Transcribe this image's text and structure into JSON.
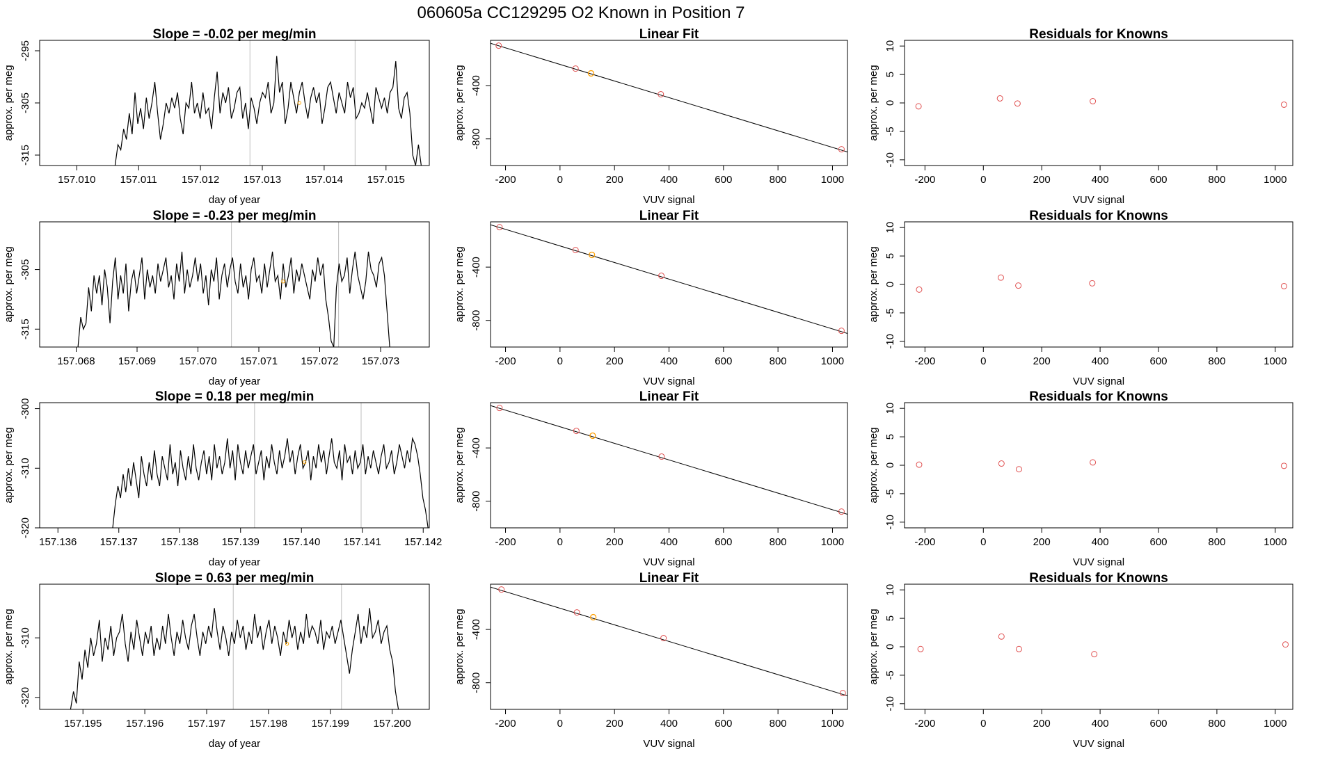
{
  "figure_title": "060605a      CC129295   O2 Known in Position  7",
  "chart_data": [
    {
      "type": "line",
      "title": "Slope =  -0.02  per meg/min",
      "xlabel": "day of year",
      "ylabel": "approx. per meg",
      "xlim": [
        157.0094,
        157.0157
      ],
      "ylim": [
        -317,
        -293
      ],
      "xticks": [
        "157.010",
        "157.011",
        "157.012",
        "157.013",
        "157.014",
        "157.015"
      ],
      "yticks": [
        "-295",
        "-305",
        "-315"
      ],
      "vlines": [
        157.0128,
        157.0145
      ],
      "marker_point": {
        "x": 157.0136,
        "y": -305
      },
      "start": 157.01062,
      "end": 157.01557,
      "values": [
        -317,
        -313,
        -314,
        -310,
        -312,
        -307,
        -311,
        -303,
        -309,
        -306,
        -310,
        -304,
        -308,
        -305,
        -301,
        -307,
        -312,
        -309,
        -305,
        -307,
        -304,
        -306,
        -303,
        -308,
        -311,
        -305,
        -306,
        -301,
        -307,
        -305,
        -308,
        -303,
        -307,
        -306,
        -310,
        -304,
        -299,
        -307,
        -303,
        -305,
        -302,
        -308,
        -306,
        -303,
        -302,
        -308,
        -305,
        -310,
        -304,
        -306,
        -309,
        -305,
        -303,
        -304,
        -301,
        -307,
        -305,
        -296,
        -303,
        -301,
        -309,
        -306,
        -301,
        -304,
        -307,
        -303,
        -301,
        -305,
        -308,
        -304,
        -302,
        -305,
        -303,
        -309,
        -306,
        -302,
        -301,
        -304,
        -307,
        -303,
        -305,
        -307,
        -301,
        -304,
        -302,
        -308,
        -307,
        -305,
        -306,
        -303,
        -306,
        -309,
        -302,
        -304,
        -306,
        -304,
        -307,
        -303,
        -302,
        -297,
        -306,
        -308,
        -304,
        -303,
        -307,
        -315,
        -317,
        -313,
        -317
      ]
    },
    {
      "type": "scatter",
      "title": "Linear Fit",
      "xlabel": "VUV signal",
      "ylabel": "approx. per meg",
      "xlim": [
        -255,
        1055
      ],
      "ylim": [
        -1000,
        -60
      ],
      "xticks": [
        "-200",
        "0",
        "200",
        "400",
        "600",
        "800",
        "1000"
      ],
      "yticks": [
        "-400",
        "-800"
      ],
      "points": [
        {
          "x": -225,
          "y": -100
        },
        {
          "x": 57,
          "y": -272
        },
        {
          "x": 114,
          "y": -308
        },
        {
          "x": 370,
          "y": -465
        },
        {
          "x": 1033,
          "y": -878
        }
      ],
      "highlight": [
        {
          "x": 114,
          "y": -308
        }
      ],
      "fit_line": {
        "x0": -255,
        "y0": -82,
        "x1": 1055,
        "y1": -898
      }
    },
    {
      "type": "scatter",
      "title": "Residuals for Knowns",
      "xlabel": "VUV signal",
      "ylabel": "approx. per meg",
      "xlim": [
        -270,
        1060
      ],
      "ylim": [
        -11,
        11
      ],
      "xticks": [
        "-200",
        "0",
        "200",
        "400",
        "600",
        "800",
        "1000"
      ],
      "yticks": [
        "10",
        "5",
        "0",
        "-5",
        "-10"
      ],
      "points": [
        {
          "x": -222,
          "y": -0.6
        },
        {
          "x": 57,
          "y": 0.8
        },
        {
          "x": 117,
          "y": -0.1
        },
        {
          "x": 375,
          "y": 0.3
        },
        {
          "x": 1030,
          "y": -0.3
        }
      ]
    },
    {
      "type": "line",
      "title": "Slope =  -0.23  per meg/min",
      "xlabel": "day of year",
      "ylabel": "approx. per meg",
      "xlim": [
        157.0674,
        157.0738
      ],
      "ylim": [
        -318,
        -297
      ],
      "xticks": [
        "157.068",
        "157.069",
        "157.070",
        "157.071",
        "157.072",
        "157.073"
      ],
      "yticks": [
        "-305",
        "-315"
      ],
      "vlines": [
        157.07055,
        157.07231
      ],
      "marker_point": {
        "x": 157.0714,
        "y": -307
      },
      "start": 157.06803,
      "end": 157.07315,
      "values": [
        -318,
        -313,
        -315,
        -314,
        -308,
        -312,
        -306,
        -309,
        -306,
        -311,
        -305,
        -308,
        -314,
        -307,
        -303,
        -310,
        -306,
        -309,
        -304,
        -312,
        -307,
        -305,
        -309,
        -306,
        -303,
        -310,
        -305,
        -308,
        -306,
        -309,
        -304,
        -307,
        -305,
        -303,
        -308,
        -306,
        -310,
        -304,
        -307,
        -302,
        -309,
        -305,
        -308,
        -306,
        -303,
        -307,
        -304,
        -309,
        -306,
        -311,
        -305,
        -307,
        -303,
        -310,
        -306,
        -304,
        -308,
        -305,
        -303,
        -307,
        -309,
        -304,
        -308,
        -306,
        -310,
        -305,
        -303,
        -307,
        -306,
        -309,
        -304,
        -308,
        -305,
        -302,
        -307,
        -306,
        -310,
        -304,
        -308,
        -306,
        -303,
        -309,
        -305,
        -307,
        -304,
        -306,
        -308,
        -310,
        -305,
        -307,
        -303,
        -306,
        -304,
        -310,
        -313,
        -317,
        -318,
        -308,
        -304,
        -307,
        -306,
        -303,
        -309,
        -305,
        -302,
        -306,
        -308,
        -310,
        -307,
        -302,
        -305,
        -306,
        -308,
        -304,
        -303,
        -306,
        -312,
        -318
      ]
    },
    {
      "type": "scatter",
      "title": "Linear Fit",
      "xlabel": "VUV signal",
      "ylabel": "approx. per meg",
      "xlim": [
        -255,
        1055
      ],
      "ylim": [
        -1000,
        -60
      ],
      "xticks": [
        "-200",
        "0",
        "200",
        "400",
        "600",
        "800",
        "1000"
      ],
      "yticks": [
        "-400",
        "-800"
      ],
      "points": [
        {
          "x": -222,
          "y": -100
        },
        {
          "x": 57,
          "y": -272
        },
        {
          "x": 117,
          "y": -308
        },
        {
          "x": 372,
          "y": -465
        },
        {
          "x": 1033,
          "y": -878
        }
      ],
      "highlight": [
        {
          "x": 117,
          "y": -308
        }
      ],
      "fit_line": {
        "x0": -255,
        "y0": -82,
        "x1": 1055,
        "y1": -898
      }
    },
    {
      "type": "scatter",
      "title": "Residuals for Knowns",
      "xlabel": "VUV signal",
      "ylabel": "approx. per meg",
      "xlim": [
        -270,
        1060
      ],
      "ylim": [
        -11,
        11
      ],
      "xticks": [
        "-200",
        "0",
        "200",
        "400",
        "600",
        "800",
        "1000"
      ],
      "yticks": [
        "10",
        "5",
        "0",
        "-5",
        "-10"
      ],
      "points": [
        {
          "x": -220,
          "y": -0.9
        },
        {
          "x": 60,
          "y": 1.2
        },
        {
          "x": 120,
          "y": -0.2
        },
        {
          "x": 373,
          "y": 0.2
        },
        {
          "x": 1030,
          "y": -0.3
        }
      ]
    },
    {
      "type": "line",
      "title": "Slope =  0.18  per meg/min",
      "xlabel": "day of year",
      "ylabel": "approx. per meg",
      "xlim": [
        157.1357,
        157.1421
      ],
      "ylim": [
        -320,
        -299
      ],
      "xticks": [
        "157.136",
        "157.137",
        "157.138",
        "157.139",
        "157.140",
        "157.141",
        "157.142"
      ],
      "yticks": [
        "-300",
        "-310",
        "-320"
      ],
      "vlines": [
        157.13923,
        157.14098
      ],
      "marker_point": {
        "x": 157.14005,
        "y": -309
      },
      "start": 157.1369,
      "end": 157.14208,
      "values": [
        -320,
        -316,
        -313,
        -315,
        -311,
        -314,
        -310,
        -313,
        -309,
        -312,
        -315,
        -308,
        -311,
        -313,
        -309,
        -312,
        -307,
        -311,
        -313,
        -308,
        -310,
        -312,
        -306,
        -311,
        -309,
        -313,
        -307,
        -310,
        -312,
        -308,
        -311,
        -306,
        -310,
        -312,
        -309,
        -307,
        -311,
        -308,
        -312,
        -306,
        -310,
        -308,
        -311,
        -309,
        -305,
        -310,
        -307,
        -312,
        -306,
        -309,
        -311,
        -307,
        -310,
        -308,
        -306,
        -311,
        -309,
        -307,
        -312,
        -308,
        -310,
        -306,
        -309,
        -311,
        -307,
        -310,
        -308,
        -305,
        -309,
        -307,
        -311,
        -308,
        -306,
        -310,
        -309,
        -307,
        -312,
        -308,
        -310,
        -306,
        -309,
        -307,
        -311,
        -308,
        -305,
        -309,
        -310,
        -307,
        -312,
        -306,
        -309,
        -308,
        -311,
        -307,
        -310,
        -309,
        -306,
        -311,
        -308,
        -310,
        -307,
        -309,
        -311,
        -308,
        -306,
        -310,
        -309,
        -307,
        -311,
        -309,
        -306,
        -308,
        -310,
        -307,
        -309,
        -305,
        -306,
        -308,
        -311,
        -315,
        -317,
        -320
      ]
    },
    {
      "type": "scatter",
      "title": "Linear Fit",
      "xlabel": "VUV signal",
      "ylabel": "approx. per meg",
      "xlim": [
        -255,
        1055
      ],
      "ylim": [
        -1000,
        -60
      ],
      "xticks": [
        "-200",
        "0",
        "200",
        "400",
        "600",
        "800",
        "1000"
      ],
      "yticks": [
        "-400",
        "-800"
      ],
      "points": [
        {
          "x": -222,
          "y": -100
        },
        {
          "x": 60,
          "y": -272
        },
        {
          "x": 120,
          "y": -308
        },
        {
          "x": 373,
          "y": -465
        },
        {
          "x": 1033,
          "y": -878
        }
      ],
      "highlight": [
        {
          "x": 120,
          "y": -308
        }
      ],
      "fit_line": {
        "x0": -255,
        "y0": -82,
        "x1": 1055,
        "y1": -898
      }
    },
    {
      "type": "scatter",
      "title": "Residuals for Knowns",
      "xlabel": "VUV signal",
      "ylabel": "approx. per meg",
      "xlim": [
        -270,
        1060
      ],
      "ylim": [
        -11,
        11
      ],
      "xticks": [
        "-200",
        "0",
        "200",
        "400",
        "600",
        "800",
        "1000"
      ],
      "yticks": [
        "10",
        "5",
        "0",
        "-5",
        "-10"
      ],
      "points": [
        {
          "x": -220,
          "y": 0.1
        },
        {
          "x": 62,
          "y": 0.3
        },
        {
          "x": 122,
          "y": -0.7
        },
        {
          "x": 375,
          "y": 0.5
        },
        {
          "x": 1030,
          "y": -0.1
        }
      ]
    },
    {
      "type": "line",
      "title": "Slope =  0.63  per meg/min",
      "xlabel": "day of year",
      "ylabel": "approx. per meg",
      "xlim": [
        157.1943,
        157.2006
      ],
      "ylim": [
        -322,
        -301
      ],
      "xticks": [
        "157.195",
        "157.196",
        "157.197",
        "157.198",
        "157.199",
        "157.200"
      ],
      "yticks": [
        "-310",
        "-320"
      ],
      "vlines": [
        157.19743,
        157.19918
      ],
      "marker_point": {
        "x": 157.1983,
        "y": -311
      },
      "start": 157.1948,
      "end": 157.2001,
      "values": [
        -322,
        -319,
        -321,
        -314,
        -317,
        -312,
        -315,
        -310,
        -313,
        -311,
        -307,
        -314,
        -310,
        -312,
        -308,
        -313,
        -310,
        -309,
        -306,
        -311,
        -314,
        -309,
        -312,
        -307,
        -310,
        -313,
        -309,
        -311,
        -308,
        -313,
        -310,
        -312,
        -308,
        -311,
        -306,
        -310,
        -313,
        -309,
        -311,
        -307,
        -310,
        -312,
        -308,
        -306,
        -310,
        -313,
        -309,
        -311,
        -308,
        -310,
        -305,
        -309,
        -312,
        -308,
        -310,
        -313,
        -309,
        -311,
        -307,
        -310,
        -308,
        -312,
        -309,
        -311,
        -306,
        -310,
        -308,
        -312,
        -309,
        -307,
        -311,
        -308,
        -310,
        -313,
        -309,
        -311,
        -307,
        -310,
        -308,
        -312,
        -309,
        -311,
        -306,
        -310,
        -308,
        -309,
        -311,
        -307,
        -312,
        -309,
        -310,
        -308,
        -311,
        -309,
        -307,
        -310,
        -313,
        -316,
        -312,
        -309,
        -306,
        -311,
        -308,
        -310,
        -305,
        -310,
        -309,
        -307,
        -311,
        -309,
        -308,
        -312,
        -314,
        -319,
        -322
      ]
    },
    {
      "type": "scatter",
      "title": "Linear Fit",
      "xlabel": "VUV signal",
      "ylabel": "approx. per meg",
      "xlim": [
        -255,
        1055
      ],
      "ylim": [
        -1000,
        -60
      ],
      "xticks": [
        "-200",
        "0",
        "200",
        "400",
        "600",
        "800",
        "1000"
      ],
      "yticks": [
        "-400",
        "-800"
      ],
      "points": [
        {
          "x": -215,
          "y": -100
        },
        {
          "x": 62,
          "y": -272
        },
        {
          "x": 122,
          "y": -308
        },
        {
          "x": 380,
          "y": -465
        },
        {
          "x": 1038,
          "y": -878
        }
      ],
      "highlight": [
        {
          "x": 122,
          "y": -308
        }
      ],
      "fit_line": {
        "x0": -255,
        "y0": -82,
        "x1": 1055,
        "y1": -898
      }
    },
    {
      "type": "scatter",
      "title": "Residuals for Knowns",
      "xlabel": "VUV signal",
      "ylabel": "approx. per meg",
      "xlim": [
        -270,
        1060
      ],
      "ylim": [
        -11,
        11
      ],
      "xticks": [
        "-200",
        "0",
        "200",
        "400",
        "600",
        "800",
        "1000"
      ],
      "yticks": [
        "10",
        "5",
        "0",
        "-5",
        "-10"
      ],
      "points": [
        {
          "x": -215,
          "y": -0.4
        },
        {
          "x": 62,
          "y": 1.8
        },
        {
          "x": 122,
          "y": -0.4
        },
        {
          "x": 380,
          "y": -1.3
        },
        {
          "x": 1035,
          "y": 0.4
        }
      ]
    }
  ],
  "colors": {
    "line": "#000000",
    "frame": "#000000",
    "vline": "#bebebe",
    "point": "#e05050",
    "highlight": "#ffa500"
  }
}
